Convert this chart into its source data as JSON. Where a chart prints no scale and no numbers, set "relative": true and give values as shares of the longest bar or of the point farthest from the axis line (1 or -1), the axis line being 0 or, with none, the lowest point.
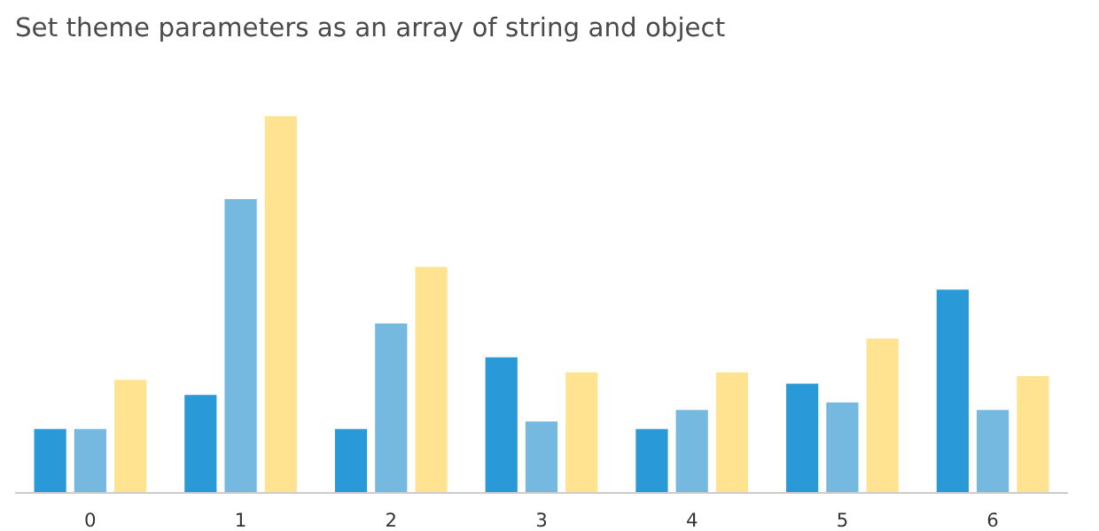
{
  "chart_data": {
    "type": "bar",
    "title": "Set theme parameters as an array of string and object",
    "categories": [
      "0",
      "1",
      "2",
      "3",
      "4",
      "5",
      "6"
    ],
    "relative": true,
    "grid": false,
    "series": [
      {
        "color": "#2a99d8",
        "values": [
          0.17,
          0.26,
          0.17,
          0.36,
          0.17,
          0.29,
          0.54
        ]
      },
      {
        "color": "#75b9e0",
        "values": [
          0.17,
          0.78,
          0.45,
          0.19,
          0.22,
          0.24,
          0.22
        ]
      },
      {
        "color": "#ffe391",
        "values": [
          0.3,
          1,
          0.6,
          0.32,
          0.32,
          0.41,
          0.31
        ]
      }
    ]
  }
}
